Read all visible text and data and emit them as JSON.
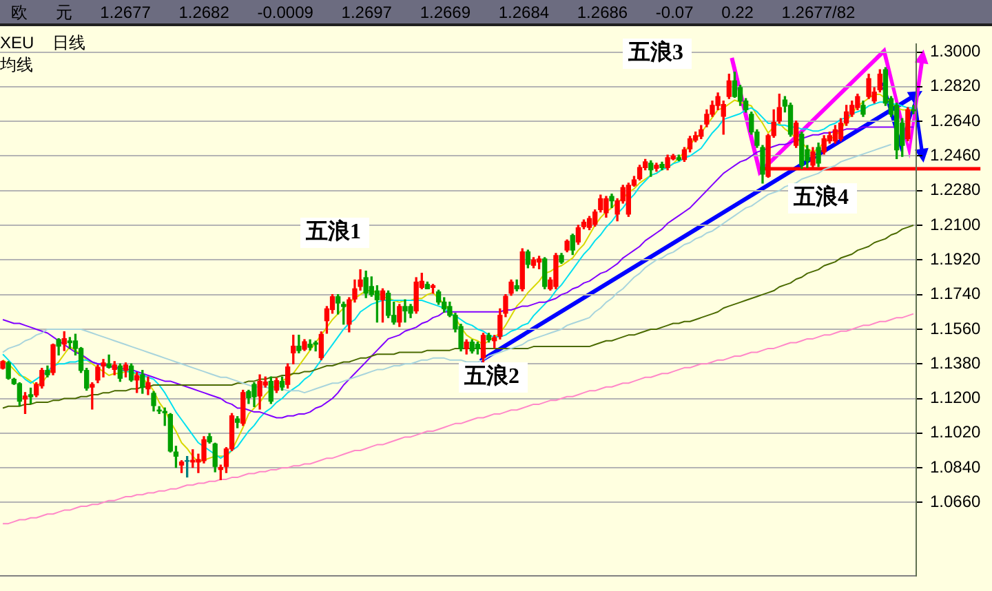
{
  "chart_data": {
    "type": "candlestick",
    "title": "欧 元 1.2677 1.2682 -0.0009 1.2697 1.2669 1.2684 1.2686 -0.07 0.22 1.2677/82",
    "subtitle": "XEU 日线",
    "annotations": [
      "均线",
      "五浪1",
      "五浪2",
      "五浪3",
      "五浪4"
    ],
    "categories": [
      null,
      null,
      null,
      null,
      null,
      null,
      null,
      null,
      null,
      null,
      null,
      null,
      null,
      null,
      null,
      null,
      null,
      null,
      null,
      null,
      null,
      null,
      null,
      null,
      null,
      null,
      null,
      null,
      null,
      null,
      null,
      null,
      null,
      null,
      null,
      null,
      null,
      null,
      null,
      null,
      null,
      null,
      null,
      null,
      null,
      null,
      null,
      null,
      null,
      null,
      null,
      null,
      null,
      null,
      null,
      null,
      null,
      null,
      null,
      null,
      null,
      null,
      null,
      null,
      null,
      null,
      null,
      null,
      null,
      null,
      null,
      null,
      null,
      null,
      null,
      null,
      null,
      null,
      null,
      null,
      null,
      null,
      null,
      null,
      null,
      null,
      null,
      null,
      null,
      null,
      null,
      null,
      null,
      null,
      null,
      null,
      null,
      null,
      null,
      null,
      null,
      null,
      null,
      null,
      null,
      null,
      null,
      null,
      null,
      null,
      null,
      null,
      null,
      null,
      null,
      null,
      null,
      null,
      null,
      null,
      null,
      null,
      null,
      null,
      null,
      null,
      null,
      null,
      null,
      null,
      null,
      null,
      null,
      null,
      null,
      null,
      null,
      null,
      null,
      null,
      null,
      null,
      null,
      null,
      null,
      null,
      null,
      null,
      null,
      null,
      null,
      null,
      null,
      null,
      null,
      null,
      null,
      null,
      null,
      null,
      null,
      null,
      null,
      null
    ],
    "ohlc": [
      [
        1.1357,
        1.1396,
        1.1353,
        1.1392
      ],
      [
        1.1385,
        1.1392,
        1.13,
        1.1305
      ],
      [
        1.13,
        1.1305,
        1.1273,
        1.1277
      ],
      [
        1.1277,
        1.1282,
        1.1163,
        1.1186
      ],
      [
        1.1197,
        1.1231,
        1.1122,
        1.1213
      ],
      [
        1.122,
        1.1254,
        1.1174,
        1.1209
      ],
      [
        1.1218,
        1.1282,
        1.1209,
        1.1273
      ],
      [
        1.1266,
        1.1357,
        1.1254,
        1.1346
      ],
      [
        1.1346,
        1.1369,
        1.1312,
        1.1323
      ],
      [
        1.1335,
        1.1483,
        1.1323,
        1.1479
      ],
      [
        1.1506,
        1.1511,
        1.1426,
        1.1472
      ],
      [
        1.1483,
        1.1547,
        1.1449,
        1.1511
      ],
      [
        1.1499,
        1.1517,
        1.146,
        1.149
      ],
      [
        1.1499,
        1.1534,
        1.1426,
        1.146
      ],
      [
        1.146,
        1.1465,
        1.1335,
        1.1346
      ],
      [
        1.1346,
        1.1357,
        1.1243,
        1.1254
      ],
      [
        1.1259,
        1.1282,
        1.1145,
        1.1273
      ],
      [
        1.1296,
        1.1374,
        1.1282,
        1.1362
      ],
      [
        1.1369,
        1.1403,
        1.1312,
        1.1385
      ],
      [
        1.138,
        1.1426,
        1.1358,
        1.1362
      ],
      [
        1.1351,
        1.1392,
        1.1323,
        1.1374
      ],
      [
        1.1369,
        1.138,
        1.1289,
        1.1305
      ],
      [
        1.1346,
        1.1385,
        1.1312,
        1.1374
      ],
      [
        1.1369,
        1.138,
        1.1289,
        1.1296
      ],
      [
        1.1296,
        1.1335,
        1.1231,
        1.1319
      ],
      [
        1.1323,
        1.1346,
        1.1227,
        1.1259
      ],
      [
        1.125,
        1.1312,
        1.122,
        1.1282
      ],
      [
        1.1227,
        1.1236,
        1.1135,
        1.1163
      ],
      [
        1.114,
        1.1158,
        1.1122,
        1.1135
      ],
      [
        1.1133,
        1.1151,
        1.106,
        1.1126
      ],
      [
        1.1117,
        1.1122,
        1.0922,
        1.0927
      ],
      [
        1.0922,
        1.0952,
        1.0842,
        1.09
      ],
      [
        1.0854,
        1.0877,
        1.0815,
        1.087
      ],
      [
        1.0877,
        1.0899,
        1.0792,
        1.0874
      ],
      [
        1.087,
        1.0934,
        1.0842,
        1.0879
      ],
      [
        1.087,
        1.0911,
        1.0815,
        1.0883
      ],
      [
        1.0877,
        1.1002,
        1.0865,
        1.0986
      ],
      [
        1.1002,
        1.1018,
        1.0968,
        1.0975
      ],
      [
        1.0964,
        1.0968,
        1.0819,
        1.0847
      ],
      [
        1.0831,
        1.0854,
        1.0778,
        1.0842
      ],
      [
        1.0847,
        1.0945,
        1.0815,
        1.0938
      ],
      [
        1.0938,
        1.1122,
        1.0929,
        1.111
      ],
      [
        1.1094,
        1.1106,
        1.1048,
        1.1076
      ],
      [
        1.1071,
        1.1243,
        1.106,
        1.1231
      ],
      [
        1.1236,
        1.1243,
        1.1174,
        1.1204
      ],
      [
        1.1273,
        1.1282,
        1.1158,
        1.1209
      ],
      [
        1.1213,
        1.1323,
        1.1145,
        1.1289
      ],
      [
        1.127,
        1.1312,
        1.1259,
        1.1286
      ],
      [
        1.1289,
        1.1312,
        1.1174,
        1.1186
      ],
      [
        1.1243,
        1.1305,
        1.1231,
        1.1293
      ],
      [
        1.1289,
        1.1312,
        1.1243,
        1.1259
      ],
      [
        1.1273,
        1.138,
        1.1254,
        1.1364
      ],
      [
        1.1437,
        1.1529,
        1.138,
        1.1472
      ],
      [
        1.1472,
        1.1529,
        1.1437,
        1.1449
      ],
      [
        1.1456,
        1.1506,
        1.1449,
        1.1495
      ],
      [
        1.1482,
        1.1505,
        1.1452,
        1.1466
      ],
      [
        1.1489,
        1.1498,
        1.1447,
        1.1482
      ],
      [
        1.1412,
        1.1546,
        1.1401,
        1.1533
      ],
      [
        1.1604,
        1.1678,
        1.1539,
        1.1666
      ],
      [
        1.1662,
        1.174,
        1.1643,
        1.1729
      ],
      [
        1.1729,
        1.174,
        1.1639,
        1.1696
      ],
      [
        1.1689,
        1.1701,
        1.1586,
        1.1678
      ],
      [
        1.1586,
        1.1724,
        1.1546,
        1.1713
      ],
      [
        1.1717,
        1.1816,
        1.1701,
        1.177
      ],
      [
        1.1782,
        1.1869,
        1.1763,
        1.1816
      ],
      [
        1.1828,
        1.1862,
        1.1724,
        1.1747
      ],
      [
        1.1782,
        1.1832,
        1.1731,
        1.174
      ],
      [
        1.1759,
        1.1786,
        1.1597,
        1.1713
      ],
      [
        1.1713,
        1.177,
        1.1597,
        1.1759
      ],
      [
        1.1747,
        1.1759,
        1.162,
        1.1632
      ],
      [
        1.1632,
        1.1701,
        1.1586,
        1.1597
      ],
      [
        1.1597,
        1.1689,
        1.1574,
        1.1678
      ],
      [
        1.1678,
        1.1713,
        1.1597,
        1.1655
      ],
      [
        1.1678,
        1.1689,
        1.162,
        1.1643
      ],
      [
        1.1655,
        1.1828,
        1.1643,
        1.1805
      ],
      [
        1.1777,
        1.1851,
        1.177,
        1.1809
      ],
      [
        1.1793,
        1.1805,
        1.177,
        1.177
      ],
      [
        1.1777,
        1.1793,
        1.1747,
        1.1786
      ],
      [
        1.1754,
        1.1763,
        1.1689,
        1.1701
      ],
      [
        1.1701,
        1.1724,
        1.1648,
        1.1666
      ],
      [
        1.1678,
        1.1701,
        1.1625,
        1.1632
      ],
      [
        1.1632,
        1.1643,
        1.1546,
        1.1562
      ],
      [
        1.1574,
        1.1586,
        1.1447,
        1.1459
      ],
      [
        1.1459,
        1.1505,
        1.1431,
        1.1493
      ],
      [
        1.1493,
        1.1505,
        1.1436,
        1.1447
      ],
      [
        1.1482,
        1.1493,
        1.1431,
        1.1459
      ],
      [
        1.1412,
        1.1539,
        1.1389,
        1.1528
      ],
      [
        1.1528,
        1.1539,
        1.1493,
        1.1505
      ],
      [
        1.15,
        1.1528,
        1.1463,
        1.1516
      ],
      [
        1.1523,
        1.1666,
        1.1509,
        1.1632
      ],
      [
        1.1643,
        1.174,
        1.1625,
        1.1731
      ],
      [
        1.1747,
        1.1816,
        1.1736,
        1.1805
      ],
      [
        1.1786,
        1.1816,
        1.1759,
        1.177
      ],
      [
        1.177,
        1.1978,
        1.1759,
        1.1962
      ],
      [
        1.1962,
        1.1971,
        1.1879,
        1.1897
      ],
      [
        1.1892,
        1.1932,
        1.1879,
        1.192
      ],
      [
        1.1909,
        1.1939,
        1.1874,
        1.1925
      ],
      [
        1.1925,
        1.1932,
        1.177,
        1.1782
      ],
      [
        1.177,
        1.1828,
        1.1763,
        1.1816
      ],
      [
        1.1782,
        1.1954,
        1.177,
        1.1943
      ],
      [
        1.1943,
        1.1954,
        1.1902,
        1.1909
      ],
      [
        1.1971,
        1.2024,
        1.1962,
        1.2017
      ],
      [
        1.2047,
        1.2054,
        1.1948,
        1.1971
      ],
      [
        1.2013,
        1.21,
        1.2001,
        1.2087
      ],
      [
        1.2093,
        1.2128,
        1.2082,
        1.2116
      ],
      [
        1.2089,
        1.2146,
        1.2077,
        1.2135
      ],
      [
        1.2105,
        1.218,
        1.2095,
        1.2169
      ],
      [
        1.2181,
        1.2257,
        1.2169,
        1.2238
      ],
      [
        1.2165,
        1.225,
        1.2142,
        1.2238
      ],
      [
        1.225,
        1.2262,
        1.2192,
        1.2227
      ],
      [
        1.2158,
        1.2238,
        1.2123,
        1.2227
      ],
      [
        1.2227,
        1.2308,
        1.2215,
        1.2296
      ],
      [
        1.2158,
        1.2319,
        1.2146,
        1.2308
      ],
      [
        1.2308,
        1.2354,
        1.2303,
        1.2336
      ],
      [
        1.2342,
        1.2412,
        1.2335,
        1.24
      ],
      [
        1.24,
        1.2442,
        1.2388,
        1.243
      ],
      [
        1.2423,
        1.2435,
        1.2354,
        1.2388
      ],
      [
        1.2396,
        1.2423,
        1.2381,
        1.2412
      ],
      [
        1.2416,
        1.2428,
        1.2388,
        1.24
      ],
      [
        1.24,
        1.2465,
        1.2388,
        1.2451
      ],
      [
        1.2445,
        1.2468,
        1.244,
        1.246
      ],
      [
        1.2451,
        1.2465,
        1.2435,
        1.2442
      ],
      [
        1.2442,
        1.2504,
        1.2432,
        1.2492
      ],
      [
        1.2497,
        1.2562,
        1.2481,
        1.255
      ],
      [
        1.2543,
        1.2585,
        1.2534,
        1.2566
      ],
      [
        1.2562,
        1.2619,
        1.255,
        1.2596
      ],
      [
        1.2626,
        1.27,
        1.2612,
        1.2677
      ],
      [
        1.2677,
        1.2746,
        1.2665,
        1.2723
      ],
      [
        1.2723,
        1.2788,
        1.27,
        1.2769
      ],
      [
        1.2666,
        1.2746,
        1.2573,
        1.2728
      ],
      [
        1.2769,
        1.2885,
        1.2758,
        1.285
      ],
      [
        1.285,
        1.2896,
        1.2765,
        1.2769
      ],
      [
        1.2815,
        1.2827,
        1.2723,
        1.2746
      ],
      [
        1.2746,
        1.2758,
        1.2688,
        1.27
      ],
      [
        1.2677,
        1.2688,
        1.2573,
        1.2585
      ],
      [
        1.2585,
        1.2596,
        1.2504,
        1.2515
      ],
      [
        1.2504,
        1.2515,
        1.2319,
        1.2366
      ],
      [
        1.2354,
        1.2573,
        1.2349,
        1.2566
      ],
      [
        1.2566,
        1.27,
        1.2557,
        1.2635
      ],
      [
        1.2642,
        1.2781,
        1.2631,
        1.2712
      ],
      [
        1.2751,
        1.2769,
        1.2689,
        1.2719
      ],
      [
        1.2723,
        1.2735,
        1.2562,
        1.2573
      ],
      [
        1.2515,
        1.2642,
        1.2504,
        1.2631
      ],
      [
        1.2573,
        1.2585,
        1.2395,
        1.2412
      ],
      [
        1.2492,
        1.2515,
        1.24,
        1.2435
      ],
      [
        1.2412,
        1.2504,
        1.2395,
        1.2481
      ],
      [
        1.2504,
        1.2527,
        1.2405,
        1.2423
      ],
      [
        1.2481,
        1.2566,
        1.2469,
        1.255
      ],
      [
        1.2538,
        1.2585,
        1.2527,
        1.2566
      ],
      [
        1.2538,
        1.2619,
        1.2527,
        1.2596
      ],
      [
        1.255,
        1.2654,
        1.2538,
        1.2631
      ],
      [
        1.2631,
        1.2723,
        1.2619,
        1.2689
      ],
      [
        1.2677,
        1.2746,
        1.2665,
        1.2723
      ],
      [
        1.2712,
        1.2781,
        1.27,
        1.2769
      ],
      [
        1.2723,
        1.2746,
        1.2665,
        1.2677
      ],
      [
        1.2769,
        1.2885,
        1.2758,
        1.2862
      ],
      [
        1.2746,
        1.2815,
        1.2735,
        1.2792
      ],
      [
        1.2804,
        1.2908,
        1.2792,
        1.2885
      ],
      [
        1.2908,
        1.2919,
        1.2723,
        1.2735
      ],
      [
        1.2758,
        1.2769,
        1.2665,
        1.2677
      ],
      [
        1.2723,
        1.2735,
        1.2446,
        1.2492
      ],
      [
        1.2631,
        1.2654,
        1.2458,
        1.2515
      ],
      [
        1.255,
        1.2712,
        1.2539,
        1.27
      ],
      [
        1.27,
        1.2722,
        1.268,
        1.2695
      ]
    ],
    "colors": [
      "#ff0000",
      "#00a000",
      "#00a000",
      "#00a000",
      "#ff0000",
      "#00a000",
      "#ff0000",
      "#ff0000",
      "#00a000",
      "#ff0000",
      "#00a000",
      "#ff0000",
      "#00a000",
      "#00a000",
      "#00a000",
      "#00a000",
      "#ff0000",
      "#ff0000",
      "#ff0000",
      "#00a000",
      "#ff0000",
      "#00a000",
      "#ff0000",
      "#00a000",
      "#ff0000",
      "#00a000",
      "#ff0000",
      "#00a000",
      "#00a000",
      "#00a000",
      "#00a000",
      "#00a000",
      "#ff0000",
      "#008080",
      "#ff0000",
      "#ff0000",
      "#ff0000",
      "#00a000",
      "#00a000",
      "#ff0000",
      "#ff0000",
      "#ff0000",
      "#00a000",
      "#ff0000",
      "#00a000",
      "#00a000",
      "#ff0000",
      "#ff0000",
      "#00a000",
      "#ff0000",
      "#00a000",
      "#ff0000",
      "#ff0000",
      "#00a000",
      "#ff0000",
      "#00a000",
      "#00a000",
      "#ff0000",
      "#ff0000",
      "#ff0000",
      "#00a000",
      "#00a000",
      "#ff0000",
      "#ff0000",
      "#ff0000",
      "#00a000",
      "#00a000",
      "#00a000",
      "#ff0000",
      "#00a000",
      "#00a000",
      "#ff0000",
      "#00a000",
      "#00a000",
      "#ff0000",
      "#ff0000",
      "#00a000",
      "#ff0000",
      "#00a000",
      "#00a000",
      "#00a000",
      "#00a000",
      "#00a000",
      "#ff0000",
      "#00a000",
      "#00a000",
      "#ff0000",
      "#00a000",
      "#ff0000",
      "#ff0000",
      "#ff0000",
      "#ff0000",
      "#00a000",
      "#ff0000",
      "#00a000",
      "#ff0000",
      "#ff0000",
      "#00a000",
      "#ff0000",
      "#ff0000",
      "#00a000",
      "#ff0000",
      "#00a000",
      "#ff0000",
      "#ff0000",
      "#ff0000",
      "#ff0000",
      "#ff0000",
      "#ff0000",
      "#00a000",
      "#ff0000",
      "#ff0000",
      "#ff0000",
      "#ff0000",
      "#ff0000",
      "#ff0000",
      "#00a000",
      "#ff0000",
      "#00a000",
      "#ff0000",
      "#ff0000",
      "#00a000",
      "#ff0000",
      "#ff0000",
      "#ff0000",
      "#ff0000",
      "#ff0000",
      "#ff0000",
      "#ff0000",
      "#ff0000",
      "#ff0000",
      "#00a000",
      "#00a000",
      "#00a000",
      "#00a000",
      "#00a000",
      "#00a000",
      "#ff0000",
      "#ff0000",
      "#ff0000",
      "#00a000",
      "#00a000",
      "#ff0000",
      "#00a000",
      "#00a000",
      "#ff0000",
      "#00a000",
      "#ff0000",
      "#ff0000",
      "#ff0000",
      "#ff0000",
      "#ff0000",
      "#ff0000",
      "#ff0000",
      "#00a000",
      "#ff0000",
      "#ff0000",
      "#ff0000",
      "#00a000",
      "#00a000",
      "#00a000",
      "#00a000",
      "#ff0000",
      "#00a000"
    ],
    "series": [
      {
        "type": "line",
        "color": "#a8d4dc",
        "values": [
          1.144,
          1.146,
          1.147,
          1.148,
          1.15,
          1.151,
          1.153,
          1.154,
          1.156,
          1.156,
          1.156,
          1.156,
          1.156,
          1.156,
          1.156,
          1.155,
          1.154,
          1.153,
          1.152,
          1.151,
          1.15,
          1.149,
          1.148,
          1.147,
          1.146,
          1.145,
          1.144,
          1.143,
          1.142,
          1.141,
          1.14,
          1.139,
          1.138,
          1.137,
          1.136,
          1.135,
          1.134,
          1.133,
          1.132,
          1.131,
          1.131,
          1.13,
          1.129,
          1.128,
          1.127,
          1.126,
          1.126,
          1.126,
          1.125,
          1.125,
          1.125,
          1.124,
          1.124,
          1.124,
          1.123,
          1.124,
          1.125,
          1.126,
          1.127,
          1.128,
          1.128,
          1.129,
          1.13,
          1.131,
          1.132,
          1.133,
          1.134,
          1.135,
          1.135,
          1.136,
          1.137,
          1.137,
          1.138,
          1.138,
          1.139,
          1.14,
          1.14,
          1.141,
          1.141,
          1.141,
          1.14,
          1.14,
          1.14,
          1.139,
          1.139,
          1.139,
          1.14,
          1.142,
          1.143,
          1.144,
          1.145,
          1.146,
          1.147,
          1.148,
          1.15,
          1.151,
          1.152,
          1.153,
          1.154,
          1.155,
          1.156,
          1.158,
          1.159,
          1.16,
          1.161,
          1.162,
          1.165,
          1.167,
          1.17,
          1.172,
          1.175,
          1.177,
          1.18,
          1.183,
          1.185,
          1.188,
          1.19,
          1.192,
          1.193,
          1.195,
          1.196,
          1.198,
          1.2,
          1.201,
          1.203,
          1.204,
          1.206,
          1.207,
          1.209,
          1.211,
          1.213,
          1.215,
          1.217,
          1.219,
          1.22,
          1.222,
          1.224,
          1.226,
          1.227,
          1.228,
          1.23,
          1.231,
          1.232,
          1.234,
          1.235,
          1.236,
          1.237,
          1.239,
          1.24,
          1.241,
          1.243,
          1.244,
          1.245,
          1.246,
          1.247,
          1.248,
          1.249,
          1.25,
          1.251,
          1.252,
          null,
          null,
          null,
          null
        ]
      },
      {
        "type": "line",
        "color": "#4a6a00",
        "values": [
          1.115,
          1.116,
          1.116,
          1.116,
          1.117,
          1.117,
          1.118,
          1.118,
          1.118,
          1.119,
          1.119,
          1.12,
          1.12,
          1.12,
          1.121,
          1.121,
          1.122,
          1.122,
          1.123,
          1.123,
          1.124,
          1.124,
          1.124,
          1.125,
          1.125,
          1.126,
          1.126,
          1.127,
          1.127,
          1.127,
          1.127,
          1.127,
          1.127,
          1.127,
          1.127,
          1.127,
          1.127,
          1.127,
          1.127,
          1.127,
          1.127,
          1.127,
          1.128,
          1.128,
          1.129,
          1.129,
          1.13,
          1.13,
          1.131,
          1.131,
          1.132,
          1.132,
          1.133,
          1.133,
          1.134,
          1.134,
          1.135,
          1.136,
          1.137,
          1.137,
          1.138,
          1.139,
          1.139,
          1.14,
          1.141,
          1.141,
          1.142,
          1.143,
          1.143,
          1.143,
          1.143,
          1.144,
          1.144,
          1.144,
          1.144,
          1.144,
          1.145,
          1.145,
          1.145,
          1.145,
          1.145,
          1.146,
          1.146,
          1.146,
          1.146,
          1.146,
          1.146,
          1.146,
          1.146,
          1.146,
          1.146,
          1.146,
          1.146,
          1.146,
          1.146,
          1.147,
          1.147,
          1.147,
          1.147,
          1.147,
          1.147,
          1.147,
          1.147,
          1.147,
          1.147,
          1.147,
          1.148,
          1.149,
          1.15,
          1.15,
          1.151,
          1.152,
          1.153,
          1.153,
          1.154,
          1.155,
          1.156,
          1.156,
          1.157,
          1.158,
          1.159,
          1.159,
          1.16,
          1.16,
          1.161,
          1.162,
          1.163,
          1.164,
          1.165,
          1.167,
          1.168,
          1.169,
          1.17,
          1.171,
          1.172,
          1.173,
          1.174,
          1.175,
          1.176,
          1.178,
          1.179,
          1.18,
          1.182,
          1.183,
          1.185,
          1.186,
          1.187,
          1.189,
          1.19,
          1.191,
          1.193,
          1.194,
          1.195,
          1.197,
          1.198,
          1.199,
          1.201,
          1.202,
          1.203,
          1.205,
          1.206,
          1.208,
          1.209,
          1.21
        ]
      },
      {
        "type": "line",
        "color": "#ff88c8",
        "values": [
          1.055,
          1.055,
          1.056,
          1.057,
          1.057,
          1.058,
          1.058,
          1.059,
          1.06,
          1.06,
          1.061,
          1.062,
          1.062,
          1.063,
          1.064,
          1.064,
          1.065,
          1.065,
          1.066,
          1.067,
          1.067,
          1.068,
          1.069,
          1.069,
          1.07,
          1.07,
          1.071,
          1.071,
          1.072,
          1.072,
          1.073,
          1.073,
          1.074,
          1.075,
          1.075,
          1.076,
          1.076,
          1.077,
          1.077,
          1.078,
          1.078,
          1.079,
          1.079,
          1.08,
          1.081,
          1.081,
          1.082,
          1.082,
          1.083,
          1.083,
          1.084,
          1.084,
          1.085,
          1.085,
          1.086,
          1.086,
          1.087,
          1.088,
          1.089,
          1.089,
          1.09,
          1.091,
          1.092,
          1.093,
          1.093,
          1.094,
          1.095,
          1.096,
          1.096,
          1.097,
          1.098,
          1.099,
          1.1,
          1.1,
          1.101,
          1.102,
          1.103,
          1.103,
          1.104,
          1.105,
          1.106,
          1.107,
          1.107,
          1.108,
          1.109,
          1.11,
          1.11,
          1.111,
          1.112,
          1.112,
          1.113,
          1.114,
          1.114,
          1.115,
          1.116,
          1.117,
          1.117,
          1.118,
          1.119,
          1.119,
          1.12,
          1.121,
          1.121,
          1.122,
          1.123,
          1.124,
          1.124,
          1.125,
          1.126,
          1.126,
          1.127,
          1.128,
          1.128,
          1.129,
          1.13,
          1.131,
          1.131,
          1.132,
          1.133,
          1.133,
          1.134,
          1.135,
          1.136,
          1.136,
          1.137,
          1.138,
          1.138,
          1.139,
          1.14,
          1.14,
          1.141,
          1.142,
          1.142,
          1.143,
          1.144,
          1.144,
          1.145,
          1.146,
          1.146,
          1.147,
          1.148,
          1.149,
          1.149,
          1.15,
          1.151,
          1.151,
          1.152,
          1.153,
          1.153,
          1.154,
          1.155,
          1.155,
          1.156,
          1.157,
          1.158,
          1.158,
          1.159,
          1.16,
          1.16,
          1.161,
          1.162,
          1.162,
          1.163,
          1.164
        ]
      },
      {
        "type": "line",
        "color": "#8000ff",
        "values": [
          1.161,
          1.16,
          1.159,
          1.159,
          1.158,
          1.157,
          1.156,
          1.155,
          1.154,
          1.152,
          1.15,
          1.148,
          1.146,
          1.144,
          1.143,
          1.141,
          1.139,
          1.138,
          1.138,
          1.137,
          1.136,
          1.136,
          1.135,
          1.135,
          1.134,
          1.133,
          1.132,
          1.131,
          1.13,
          1.129,
          1.129,
          1.128,
          1.127,
          1.126,
          1.125,
          1.124,
          1.123,
          1.122,
          1.121,
          1.12,
          1.118,
          1.117,
          1.115,
          1.115,
          1.114,
          1.113,
          1.113,
          1.112,
          1.111,
          1.11,
          1.11,
          1.111,
          1.111,
          1.112,
          1.112,
          1.113,
          1.115,
          1.116,
          1.118,
          1.12,
          1.123,
          1.127,
          1.13,
          1.133,
          1.136,
          1.139,
          1.142,
          1.145,
          1.148,
          1.151,
          1.152,
          1.153,
          1.155,
          1.156,
          1.157,
          1.159,
          1.16,
          1.162,
          1.163,
          1.165,
          1.165,
          1.165,
          1.165,
          1.165,
          1.165,
          1.165,
          1.165,
          1.165,
          1.165,
          1.165,
          1.166,
          1.166,
          1.167,
          1.168,
          1.168,
          1.169,
          1.17,
          1.17,
          1.171,
          1.172,
          1.174,
          1.175,
          1.177,
          1.178,
          1.18,
          1.181,
          1.183,
          1.185,
          1.186,
          1.188,
          1.19,
          1.193,
          1.195,
          1.197,
          1.199,
          1.202,
          1.204,
          1.206,
          1.208,
          1.211,
          1.213,
          1.215,
          1.217,
          1.219,
          1.222,
          1.225,
          1.228,
          1.231,
          1.234,
          1.237,
          1.239,
          1.241,
          1.243,
          1.244,
          1.246,
          1.248,
          1.249,
          1.25,
          1.251,
          1.252,
          1.252,
          1.253,
          1.254,
          1.255,
          1.256,
          1.257,
          1.257,
          1.258,
          1.258,
          1.259,
          1.259,
          1.26,
          1.26,
          1.26,
          1.261,
          1.261,
          1.261,
          1.261,
          1.261,
          1.261,
          1.261,
          null,
          1.261,
          1.261
        ]
      },
      {
        "type": "line",
        "color": "#00e0f0",
        "values": [
          1.143,
          1.14,
          1.137,
          1.133,
          1.13,
          1.128,
          1.13,
          1.132,
          1.134,
          1.137,
          1.138,
          1.138,
          1.139,
          1.139,
          1.14,
          1.14,
          1.139,
          1.138,
          1.137,
          1.137,
          1.136,
          1.135,
          1.134,
          1.134,
          1.133,
          1.132,
          1.131,
          1.13,
          1.127,
          1.123,
          1.118,
          1.113,
          1.109,
          1.105,
          1.101,
          1.097,
          1.095,
          1.093,
          1.091,
          1.089,
          1.091,
          1.093,
          1.095,
          1.099,
          1.103,
          1.106,
          1.11,
          1.113,
          1.115,
          1.118,
          1.12,
          1.123,
          1.125,
          1.127,
          1.13,
          1.132,
          1.136,
          1.14,
          1.144,
          1.148,
          1.152,
          1.156,
          1.159,
          1.161,
          1.165,
          1.167,
          1.169,
          1.17,
          1.171,
          1.171,
          1.171,
          1.171,
          1.171,
          1.171,
          1.171,
          1.171,
          1.17,
          1.169,
          1.168,
          1.167,
          1.164,
          1.163,
          1.161,
          1.159,
          1.158,
          1.156,
          1.155,
          1.153,
          1.152,
          1.152,
          1.153,
          1.155,
          1.156,
          1.158,
          1.159,
          1.163,
          1.166,
          1.169,
          1.172,
          1.176,
          1.179,
          1.183,
          1.187,
          1.191,
          1.195,
          1.198,
          1.202,
          1.205,
          1.209,
          1.212,
          1.216,
          1.219,
          1.223,
          1.226,
          1.23,
          1.233,
          1.236,
          1.237,
          1.239,
          1.24,
          1.242,
          1.243,
          1.245,
          1.246,
          1.248,
          1.25,
          1.254,
          1.258,
          1.261,
          1.265,
          1.266,
          1.267,
          1.268,
          1.27,
          1.271,
          1.269,
          1.266,
          1.263,
          1.263,
          1.262,
          1.262,
          1.261,
          1.261,
          1.26,
          1.26,
          1.259,
          1.259,
          1.26,
          1.262,
          1.263,
          1.265,
          1.266,
          1.268,
          1.269,
          1.27,
          1.272,
          1.273,
          1.274,
          1.274,
          1.273,
          1.273,
          1.272,
          1.271,
          1.271
        ]
      },
      {
        "type": "line",
        "color": "#d8d800",
        "values": [
          1.14,
          1.138,
          1.135,
          1.132,
          1.131,
          1.129,
          1.127,
          1.128,
          1.132,
          1.136,
          1.139,
          1.143,
          1.147,
          1.145,
          1.143,
          1.14,
          1.138,
          1.136,
          1.134,
          1.132,
          1.133,
          1.133,
          1.134,
          1.134,
          1.132,
          1.13,
          1.128,
          1.124,
          1.118,
          1.114,
          1.108,
          1.103,
          1.097,
          1.094,
          1.09,
          1.087,
          1.088,
          1.089,
          1.09,
          1.09,
          1.09,
          1.093,
          1.099,
          1.105,
          1.112,
          1.115,
          1.118,
          1.122,
          1.125,
          1.127,
          1.129,
          1.131,
          1.133,
          1.137,
          1.141,
          1.145,
          1.149,
          1.153,
          1.157,
          1.161,
          1.164,
          1.167,
          1.17,
          1.172,
          1.174,
          1.176,
          1.176,
          1.175,
          1.173,
          1.172,
          1.171,
          1.17,
          1.171,
          1.171,
          1.172,
          1.172,
          1.174,
          1.175,
          1.172,
          1.169,
          1.166,
          1.162,
          1.157,
          1.153,
          1.151,
          1.15,
          1.148,
          1.15,
          1.152,
          1.154,
          1.158,
          1.163,
          1.168,
          1.171,
          1.175,
          1.178,
          1.181,
          1.185,
          1.186,
          1.188,
          1.189,
          1.191,
          1.193,
          1.197,
          1.2,
          1.205,
          1.21,
          1.214,
          1.217,
          1.219,
          1.222,
          1.224,
          1.227,
          1.229,
          1.232,
          1.234,
          1.236,
          1.237,
          1.239,
          1.24,
          1.242,
          1.245,
          1.248,
          1.252,
          1.255,
          1.258,
          1.262,
          1.266,
          1.27,
          1.271,
          1.273,
          1.275,
          1.274,
          1.273,
          1.272,
          1.267,
          1.263,
          1.258,
          1.261,
          1.263,
          1.26,
          1.258,
          1.255,
          1.253,
          1.25,
          1.248,
          1.25,
          1.253,
          1.255,
          1.256,
          1.26,
          1.264,
          1.268,
          1.272,
          1.274,
          1.276,
          1.278,
          1.278,
          1.276,
          1.274,
          1.271,
          1.27,
          1.27,
          1.27
        ]
      }
    ],
    "ylim": [
      1.028,
      1.304
    ],
    "yticks": [
      {
        "value": 1.066,
        "label": "1.0660"
      },
      {
        "value": 1.084,
        "label": "1.0840"
      },
      {
        "value": 1.102,
        "label": "1.1020"
      },
      {
        "value": 1.12,
        "label": "1.1200"
      },
      {
        "value": 1.138,
        "label": "1.1380"
      },
      {
        "value": 1.156,
        "label": "1.1560"
      },
      {
        "value": 1.174,
        "label": "1.1740"
      },
      {
        "value": 1.192,
        "label": "1.1920"
      },
      {
        "value": 1.21,
        "label": "1.2100"
      },
      {
        "value": 1.228,
        "label": "1.2280"
      },
      {
        "value": 1.246,
        "label": "1.2460"
      },
      {
        "value": 1.264,
        "label": "1.2640"
      },
      {
        "value": 1.282,
        "label": "1.2820"
      },
      {
        "value": 1.3,
        "label": "1.3000"
      }
    ],
    "tick_labels": "y",
    "grid": "y",
    "legend": false
  }
}
